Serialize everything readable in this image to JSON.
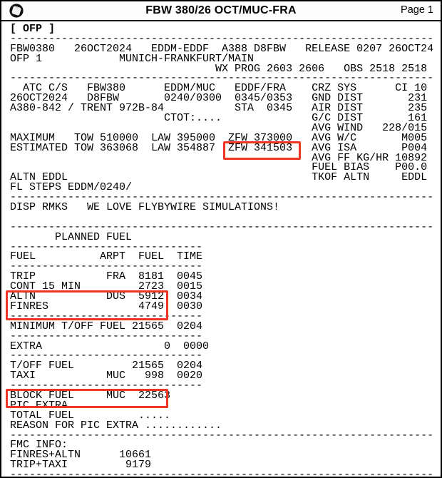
{
  "header": {
    "title": "FBW 380/26 OCT/MUC-FRA",
    "page": "Page 1",
    "logo_icon": "spinner-icon"
  },
  "flight": {
    "flight_number": "FBW0380",
    "date": "26OCT2024",
    "route": "EDDM-EDDF",
    "city_pair": "MUNICH-FRANKFURT/MAIN",
    "aircraft_type": "A388",
    "registration": "D8FBW",
    "release": "RELEASE 0207 26OCT24",
    "atc_callsign": "FBW380",
    "airframe": "A380-842 / TRENT 972B-84",
    "std_sta": "0240/0300 0345/0353",
    "sta": "0345",
    "cost_index": "CI 10",
    "gnd_dist": "231",
    "air_dist": "235",
    "gc_dist": "161",
    "avg_wind": "228/015",
    "avg_wc": "M005",
    "avg_isa": "P004",
    "avg_ff_kg_hr": "10892",
    "fuel_bias": "P00.0",
    "tkof_altn": "EDDL",
    "altn": "EDDL",
    "fl_steps": "EDDM/0240/",
    "disp_rmks": "WE LOVE FLYBYWIRE SIMULATIONS!",
    "maximum": {
      "tow": "510000",
      "law": "395000",
      "zfw": "373000"
    },
    "estimated": {
      "tow": "363068",
      "law": "354887",
      "zfw": "341503"
    }
  },
  "fuel_table": {
    "title": "PLANNED FUEL",
    "columns": [
      "FUEL",
      "ARPT",
      "FUEL",
      "TIME"
    ],
    "rows": [
      {
        "name": "TRIP",
        "arpt": "FRA",
        "fuel": "8181",
        "time": "0045"
      },
      {
        "name": "CONT 15 MIN",
        "arpt": "",
        "fuel": "2723",
        "time": "0015"
      },
      {
        "name": "ALTN",
        "arpt": "DUS",
        "fuel": "5912",
        "time": "0034"
      },
      {
        "name": "FINRES",
        "arpt": "",
        "fuel": "4749",
        "time": "0030"
      },
      {
        "name": "MINIMUM T/OFF FUEL",
        "arpt": "",
        "fuel": "21565",
        "time": "0204"
      },
      {
        "name": "EXTRA",
        "arpt": "",
        "fuel": "0",
        "time": "0000"
      },
      {
        "name": "T/OFF FUEL",
        "arpt": "",
        "fuel": "21565",
        "time": "0204"
      },
      {
        "name": "TAXI",
        "arpt": "MUC",
        "fuel": "998",
        "time": "0020"
      },
      {
        "name": "BLOCK FUEL",
        "arpt": "MUC",
        "fuel": "22563",
        "time": ""
      },
      {
        "name": "PIC EXTRA",
        "arpt": "",
        "fuel": ".....",
        "time": ""
      },
      {
        "name": "TOTAL FUEL",
        "arpt": "",
        "fuel": ".....",
        "time": ""
      },
      {
        "name": "REASON FOR PIC EXTRA",
        "arpt": "",
        "fuel": "............",
        "time": ""
      }
    ]
  },
  "fmc_info": {
    "label": "FMC INFO:",
    "finres_altn": "10661",
    "trip_taxi": "9179"
  },
  "highlights": [
    {
      "name": "zfw-estimated",
      "value": "ZFW 341503"
    },
    {
      "name": "altn-finres-fuel",
      "value": "ALTN DUS 5912 0034 / FINRES 4749 0030"
    },
    {
      "name": "block-fuel",
      "value": "BLOCK FUEL MUC 22563"
    }
  ],
  "colors": {
    "highlight_red": "#ee3524",
    "text": "#000000",
    "page_bg": "#ffffff"
  },
  "document": {
    "tag_line_index": 0,
    "lines": [
      "[ OFP ]",
      "------------------------------------------------------------------",
      "FBW0380   26OCT2024   EDDM-EDDF  A388 D8FBW   RELEASE 0207 26OCT24",
      "OFP 1            MUNICH-FRANKFURT/MAIN",
      "                                WX PROG 2603 2606   OBS 2518 2518",
      "------------------------------------------------------------------",
      "  ATC C/S   FBW380      EDDM/MUC   EDDF/FRA    CRZ SYS      CI 10",
      "26OCT2024   D8FBW       0240/0300  0345/0353   GND DIST       231",
      "A380-842 / TRENT 972B-84           STA  0345   AIR DIST       235",
      "                        CTOT:....              G/C DIST       161",
      "                                               AVG WIND   228/015",
      "MAXIMUM   TOW 510000  LAW 395000  ZFW 373000   AVG W/C       M005",
      "ESTIMATED TOW 363068  LAW 354887  ZFW 341503   AVG ISA       P004",
      "                                               AVG FF KG/HR 10892",
      "                                               FUEL BIAS    P00.0",
      "ALTN EDDL                                      TKOF ALTN     EDDL",
      "FL STEPS EDDM/0240/",
      "------------------------------------------------------------------",
      "DISP RMKS   WE LOVE FLYBYWIRE SIMULATIONS!",
      "",
      "------------------------------------------------------------------",
      "       PLANNED FUEL",
      "------------------------------",
      "FUEL          ARPT  FUEL  TIME",
      "------------------------------",
      "TRIP           FRA  8181  0045",
      "CONT 15 MIN         2723  0015",
      "ALTN           DUS  5912  0034",
      "FINRES              4749  0030",
      "------------------------------",
      "MINIMUM T/OFF FUEL 21565  0204",
      "------------------------------",
      "EXTRA                   0  0000",
      "------------------------------",
      "T/OFF FUEL         21565  0204",
      "TAXI           MUC   998  0020",
      "------------------------------",
      "BLOCK FUEL     MUC  22563",
      "PIC EXTRA           .....",
      "TOTAL FUEL          .....",
      "REASON FOR PIC EXTRA ............",
      "------------------------------------------------------------------",
      "FMC INFO:",
      "FINRES+ALTN      10661",
      "TRIP+TAXI         9179",
      "------------------------------------------------------------------"
    ]
  }
}
